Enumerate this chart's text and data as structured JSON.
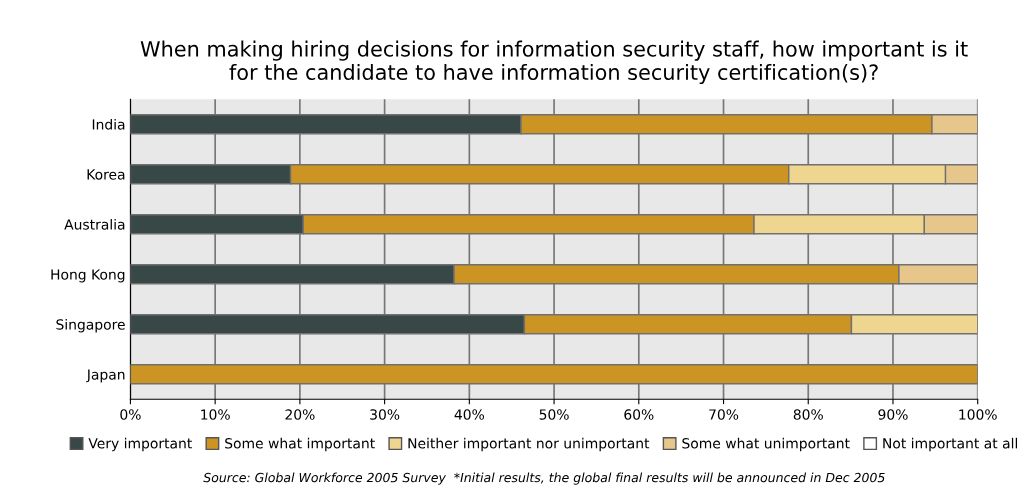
{
  "chart_data": {
    "type": "bar",
    "orientation": "horizontal",
    "stacked": true,
    "title": "When making hiring decisions for information security staff, how important is it\nfor the candidate to have information security certification(s)?",
    "categories": [
      "India",
      "Korea",
      "Australia",
      "Hong Kong",
      "Singapore",
      "Japan"
    ],
    "series": [
      {
        "name": "Very important",
        "color": "#384847",
        "values": [
          46.1,
          18.9,
          20.4,
          38.2,
          46.5,
          0
        ]
      },
      {
        "name": "Some what important",
        "color": "#cc9422",
        "values": [
          48.5,
          58.8,
          53.2,
          52.5,
          38.6,
          100
        ]
      },
      {
        "name": "Neither important nor unimportant",
        "color": "#efd690",
        "values": [
          0,
          18.5,
          20.1,
          0,
          14.9,
          0
        ]
      },
      {
        "name": "Some what unimportant",
        "color": "#e6c68a",
        "values": [
          5.4,
          3.8,
          6.3,
          9.3,
          0,
          0
        ]
      },
      {
        "name": "Not important at all",
        "color": "#ffffff",
        "values": [
          0,
          0,
          0,
          0,
          0,
          0
        ]
      }
    ],
    "xlim": [
      0,
      100
    ],
    "xticks": [
      {
        "value": 0,
        "label": "0%"
      },
      {
        "value": 10,
        "label": "10%"
      },
      {
        "value": 20,
        "label": "20%"
      },
      {
        "value": 30,
        "label": "30%"
      },
      {
        "value": 40,
        "label": "40%"
      },
      {
        "value": 50,
        "label": "50%"
      },
      {
        "value": 60,
        "label": "60%"
      },
      {
        "value": 70,
        "label": "70%"
      },
      {
        "value": 80,
        "label": "80%"
      },
      {
        "value": 90,
        "label": "90%"
      },
      {
        "value": 100,
        "label": "100%"
      }
    ],
    "grid": "x",
    "legend": "bottom",
    "annotations": [
      "Source: Global Workforce 2005 Survey  *Initial results, the global final results will be announced in Dec 2005"
    ]
  }
}
